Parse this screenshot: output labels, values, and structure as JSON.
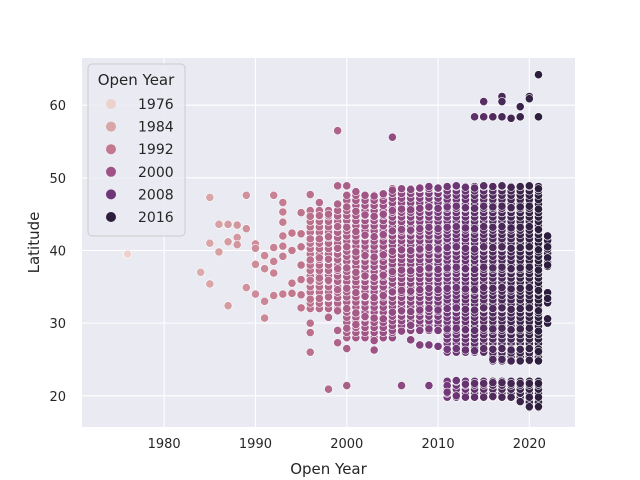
{
  "chart_data": {
    "type": "scatter",
    "xlabel": "Open Year",
    "ylabel": "Latitude",
    "xlim": [
      1971,
      2025
    ],
    "ylim": [
      15.7,
      66.5
    ],
    "xticks": [
      1980,
      1990,
      2000,
      2010,
      2020
    ],
    "yticks": [
      20,
      30,
      40,
      50,
      60
    ],
    "grid": true,
    "background": "#EAEAF2",
    "grid_color": "#FFFFFF",
    "legend": {
      "title": "Open Year",
      "position": "top-left",
      "entries": [
        {
          "label": "1976",
          "color": "#EDD1CB"
        },
        {
          "label": "1984",
          "color": "#D9A5A6"
        },
        {
          "label": "1992",
          "color": "#C3788E"
        },
        {
          "label": "2000",
          "color": "#9E5286"
        },
        {
          "label": "2008",
          "color": "#6D3676"
        },
        {
          "label": "2016",
          "color": "#2D1E3E"
        }
      ]
    },
    "color_scale": {
      "min_year": 1976,
      "max_year": 2021,
      "colors": [
        "#EDD1CB",
        "#D9A5A6",
        "#C3788E",
        "#9E5286",
        "#6D3676",
        "#2D1E3E"
      ]
    },
    "points": [
      [
        1976,
        39.5
      ],
      [
        1984,
        37.0
      ],
      [
        1985,
        47.3
      ],
      [
        1985,
        41.0
      ],
      [
        1985,
        35.4
      ],
      [
        1986,
        43.6
      ],
      [
        1986,
        39.8
      ],
      [
        1987,
        43.6
      ],
      [
        1987,
        41.2
      ],
      [
        1987,
        32.4
      ],
      [
        1988,
        43.5
      ],
      [
        1988,
        41.8
      ],
      [
        1988,
        40.8
      ],
      [
        1989,
        47.6
      ],
      [
        1989,
        43.0
      ],
      [
        1989,
        34.9
      ],
      [
        1990,
        40.9
      ],
      [
        1990,
        40.3
      ],
      [
        1990,
        38.1
      ],
      [
        1990,
        34.0
      ],
      [
        1991,
        39.3
      ],
      [
        1991,
        37.5
      ],
      [
        1991,
        33.0
      ],
      [
        1991,
        30.7
      ],
      [
        1992,
        47.6
      ],
      [
        1992,
        40.4
      ],
      [
        1992,
        38.5
      ],
      [
        1992,
        36.9
      ],
      [
        1992,
        33.8
      ],
      [
        1993,
        46.6
      ],
      [
        1993,
        45.3
      ],
      [
        1993,
        43.9
      ],
      [
        1993,
        42.0
      ],
      [
        1993,
        40.6
      ],
      [
        1993,
        39.2
      ],
      [
        1993,
        34.0
      ],
      [
        1994,
        42.4
      ],
      [
        1994,
        40.0
      ],
      [
        1994,
        35.5
      ],
      [
        1994,
        34.1
      ],
      [
        1995,
        45.2
      ],
      [
        1995,
        42.3
      ],
      [
        1995,
        40.5
      ],
      [
        1995,
        38.0
      ],
      [
        1995,
        36.0
      ],
      [
        1995,
        33.9
      ],
      [
        1995,
        32.1
      ],
      [
        1996,
        47.7
      ],
      [
        1996,
        44.7
      ],
      [
        1996,
        41.6
      ],
      [
        1996,
        38.7
      ],
      [
        1996,
        35.9
      ],
      [
        1996,
        33.3
      ],
      [
        1996,
        30.0
      ],
      [
        1996,
        26.0
      ],
      [
        1996,
        28.7
      ],
      [
        1997,
        46.6
      ],
      [
        1997,
        44.8
      ],
      [
        1997,
        41.6
      ],
      [
        1997,
        39.0
      ],
      [
        1997,
        36.2
      ],
      [
        1997,
        33.4
      ],
      [
        1998,
        45.0
      ],
      [
        1998,
        41.9
      ],
      [
        1998,
        38.8
      ],
      [
        1998,
        35.9
      ],
      [
        1998,
        33.6
      ],
      [
        1998,
        30.8
      ],
      [
        1998,
        20.9
      ],
      [
        1999,
        56.5
      ],
      [
        1999,
        48.9
      ],
      [
        1999,
        46.4
      ],
      [
        1999,
        43.3
      ],
      [
        1999,
        40.3
      ],
      [
        1999,
        37.5
      ],
      [
        1999,
        34.6
      ],
      [
        1999,
        31.7
      ],
      [
        1999,
        29.0
      ],
      [
        1999,
        27.3
      ],
      [
        2000,
        48.9
      ],
      [
        2000,
        46.0
      ],
      [
        2000,
        43.2
      ],
      [
        2000,
        40.5
      ],
      [
        2000,
        37.6
      ],
      [
        2000,
        34.8
      ],
      [
        2000,
        32.0
      ],
      [
        2000,
        29.3
      ],
      [
        2000,
        26.5
      ],
      [
        2000,
        21.4
      ],
      [
        2001,
        48.1
      ],
      [
        2001,
        45.4
      ],
      [
        2001,
        42.6
      ],
      [
        2001,
        39.8
      ],
      [
        2001,
        37.0
      ],
      [
        2001,
        34.2
      ],
      [
        2001,
        31.4
      ],
      [
        2001,
        29.8
      ],
      [
        2002,
        47.6
      ],
      [
        2002,
        44.9
      ],
      [
        2002,
        42.1
      ],
      [
        2002,
        39.3
      ],
      [
        2002,
        36.5
      ],
      [
        2002,
        33.7
      ],
      [
        2002,
        30.9
      ],
      [
        2003,
        47.5
      ],
      [
        2003,
        44.7
      ],
      [
        2003,
        41.9
      ],
      [
        2003,
        39.1
      ],
      [
        2003,
        36.3
      ],
      [
        2003,
        33.5
      ],
      [
        2003,
        30.7
      ],
      [
        2003,
        27.6
      ],
      [
        2003,
        26.3
      ],
      [
        2004,
        47.8
      ],
      [
        2004,
        45.0
      ],
      [
        2004,
        42.2
      ],
      [
        2004,
        39.4
      ],
      [
        2004,
        36.6
      ],
      [
        2004,
        33.8
      ],
      [
        2004,
        30.6
      ],
      [
        2005,
        55.6
      ],
      [
        2005,
        48.3
      ],
      [
        2005,
        45.5
      ],
      [
        2005,
        42.7
      ],
      [
        2005,
        39.9
      ],
      [
        2005,
        37.1
      ],
      [
        2005,
        34.3
      ],
      [
        2005,
        31.5
      ],
      [
        2006,
        48.5
      ],
      [
        2006,
        45.7
      ],
      [
        2006,
        42.9
      ],
      [
        2006,
        40.1
      ],
      [
        2006,
        37.3
      ],
      [
        2006,
        34.5
      ],
      [
        2006,
        31.7
      ],
      [
        2006,
        28.9
      ],
      [
        2006,
        21.4
      ],
      [
        2007,
        48.4
      ],
      [
        2007,
        45.6
      ],
      [
        2007,
        42.8
      ],
      [
        2007,
        40.0
      ],
      [
        2007,
        37.2
      ],
      [
        2007,
        34.4
      ],
      [
        2007,
        31.6
      ],
      [
        2007,
        29.7
      ],
      [
        2007,
        27.7
      ],
      [
        2008,
        48.6
      ],
      [
        2008,
        45.8
      ],
      [
        2008,
        43.0
      ],
      [
        2008,
        40.2
      ],
      [
        2008,
        37.4
      ],
      [
        2008,
        34.6
      ],
      [
        2008,
        31.8
      ],
      [
        2008,
        29.0
      ],
      [
        2008,
        27.0
      ],
      [
        2009,
        48.8
      ],
      [
        2009,
        46.0
      ],
      [
        2009,
        43.2
      ],
      [
        2009,
        40.4
      ],
      [
        2009,
        37.6
      ],
      [
        2009,
        34.8
      ],
      [
        2009,
        32.0
      ],
      [
        2009,
        29.2
      ],
      [
        2009,
        27.0
      ],
      [
        2009,
        21.4
      ],
      [
        2010,
        48.6
      ],
      [
        2010,
        45.8
      ],
      [
        2010,
        43.0
      ],
      [
        2010,
        40.2
      ],
      [
        2010,
        37.4
      ],
      [
        2010,
        34.6
      ],
      [
        2010,
        31.8
      ],
      [
        2010,
        29.0
      ],
      [
        2010,
        26.8
      ],
      [
        2011,
        48.8
      ],
      [
        2011,
        46.0
      ],
      [
        2011,
        43.2
      ],
      [
        2011,
        40.4
      ],
      [
        2011,
        37.6
      ],
      [
        2011,
        34.8
      ],
      [
        2011,
        32.0
      ],
      [
        2011,
        29.2
      ],
      [
        2011,
        26.4
      ],
      [
        2011,
        21.4
      ],
      [
        2011,
        20.5
      ],
      [
        2012,
        48.9
      ],
      [
        2012,
        46.1
      ],
      [
        2012,
        43.3
      ],
      [
        2012,
        40.5
      ],
      [
        2012,
        37.7
      ],
      [
        2012,
        34.9
      ],
      [
        2012,
        32.1
      ],
      [
        2012,
        29.3
      ],
      [
        2012,
        26.5
      ],
      [
        2012,
        22.1
      ],
      [
        2012,
        20.0
      ],
      [
        2013,
        48.7
      ],
      [
        2013,
        45.9
      ],
      [
        2013,
        43.1
      ],
      [
        2013,
        40.3
      ],
      [
        2013,
        37.5
      ],
      [
        2013,
        34.7
      ],
      [
        2013,
        31.9
      ],
      [
        2013,
        29.1
      ],
      [
        2013,
        26.3
      ],
      [
        2013,
        21.6
      ],
      [
        2013,
        19.8
      ],
      [
        2014,
        58.4
      ],
      [
        2014,
        48.6
      ],
      [
        2014,
        45.8
      ],
      [
        2014,
        43.0
      ],
      [
        2014,
        40.2
      ],
      [
        2014,
        37.4
      ],
      [
        2014,
        34.6
      ],
      [
        2014,
        31.8
      ],
      [
        2014,
        29.0
      ],
      [
        2014,
        26.2
      ],
      [
        2014,
        21.7
      ],
      [
        2014,
        19.8
      ],
      [
        2015,
        60.5
      ],
      [
        2015,
        58.4
      ],
      [
        2015,
        48.9
      ],
      [
        2015,
        46.1
      ],
      [
        2015,
        43.3
      ],
      [
        2015,
        40.5
      ],
      [
        2015,
        37.7
      ],
      [
        2015,
        34.9
      ],
      [
        2015,
        32.1
      ],
      [
        2015,
        29.3
      ],
      [
        2015,
        26.5
      ],
      [
        2015,
        21.7
      ],
      [
        2015,
        19.8
      ],
      [
        2016,
        58.4
      ],
      [
        2016,
        48.8
      ],
      [
        2016,
        46.0
      ],
      [
        2016,
        43.2
      ],
      [
        2016,
        40.4
      ],
      [
        2016,
        37.6
      ],
      [
        2016,
        34.8
      ],
      [
        2016,
        32.0
      ],
      [
        2016,
        29.2
      ],
      [
        2016,
        26.4
      ],
      [
        2016,
        25.0
      ],
      [
        2016,
        21.8
      ],
      [
        2016,
        19.9
      ],
      [
        2017,
        61.2
      ],
      [
        2017,
        60.5
      ],
      [
        2017,
        58.4
      ],
      [
        2017,
        48.9
      ],
      [
        2017,
        46.1
      ],
      [
        2017,
        43.3
      ],
      [
        2017,
        40.5
      ],
      [
        2017,
        37.7
      ],
      [
        2017,
        34.9
      ],
      [
        2017,
        32.1
      ],
      [
        2017,
        29.3
      ],
      [
        2017,
        26.5
      ],
      [
        2017,
        25.0
      ],
      [
        2017,
        21.8
      ],
      [
        2017,
        19.8
      ],
      [
        2018,
        58.2
      ],
      [
        2018,
        48.7
      ],
      [
        2018,
        45.9
      ],
      [
        2018,
        43.1
      ],
      [
        2018,
        40.3
      ],
      [
        2018,
        37.5
      ],
      [
        2018,
        34.7
      ],
      [
        2018,
        31.9
      ],
      [
        2018,
        29.1
      ],
      [
        2018,
        26.3
      ],
      [
        2018,
        24.8
      ],
      [
        2018,
        21.7
      ],
      [
        2018,
        19.8
      ],
      [
        2019,
        59.8
      ],
      [
        2019,
        58.4
      ],
      [
        2019,
        48.8
      ],
      [
        2019,
        46.0
      ],
      [
        2019,
        43.2
      ],
      [
        2019,
        40.4
      ],
      [
        2019,
        37.6
      ],
      [
        2019,
        34.8
      ],
      [
        2019,
        32.0
      ],
      [
        2019,
        29.2
      ],
      [
        2019,
        26.4
      ],
      [
        2019,
        24.8
      ],
      [
        2019,
        21.7
      ],
      [
        2019,
        19.2
      ],
      [
        2020,
        61.2
      ],
      [
        2020,
        60.9
      ],
      [
        2020,
        48.9
      ],
      [
        2020,
        46.1
      ],
      [
        2020,
        43.3
      ],
      [
        2020,
        40.5
      ],
      [
        2020,
        37.7
      ],
      [
        2020,
        34.9
      ],
      [
        2020,
        32.1
      ],
      [
        2020,
        29.3
      ],
      [
        2020,
        26.5
      ],
      [
        2020,
        24.9
      ],
      [
        2020,
        21.7
      ],
      [
        2020,
        18.5
      ],
      [
        2021,
        64.2
      ],
      [
        2021,
        58.4
      ],
      [
        2021,
        48.5
      ],
      [
        2021,
        45.7
      ],
      [
        2021,
        42.9
      ],
      [
        2021,
        40.1
      ],
      [
        2021,
        37.3
      ],
      [
        2021,
        34.5
      ],
      [
        2021,
        31.7
      ],
      [
        2021,
        28.9
      ],
      [
        2021,
        26.1
      ],
      [
        2021,
        24.8
      ],
      [
        2021,
        21.7
      ],
      [
        2021,
        18.5
      ],
      [
        2022,
        42.0
      ],
      [
        2022,
        40.5
      ],
      [
        2022,
        39.0
      ],
      [
        2022,
        38.0
      ],
      [
        2022,
        34.2
      ],
      [
        2022,
        33.4
      ],
      [
        2022,
        30.6
      ]
    ],
    "density_regions": [
      {
        "x": [
          1996,
          2000
        ],
        "y": [
          32,
          46
        ],
        "step_x": 0.5,
        "step_y": 0.75
      },
      {
        "x": [
          2000,
          2005
        ],
        "y": [
          28,
          48
        ],
        "step_x": 0.5,
        "step_y": 0.7
      },
      {
        "x": [
          2005,
          2011
        ],
        "y": [
          29,
          48.5
        ],
        "step_x": 0.4,
        "step_y": 0.65
      },
      {
        "x": [
          2011,
          2021
        ],
        "y": [
          26,
          48.8
        ],
        "step_x": 0.4,
        "step_y": 0.6
      },
      {
        "x": [
          2016,
          2021
        ],
        "y": [
          24.8,
          26.5
        ],
        "step_x": 0.45,
        "step_y": 0.55
      },
      {
        "x": [
          2011,
          2021
        ],
        "y": [
          19.8,
          22.2
        ],
        "step_x": 0.4,
        "step_y": 0.55
      },
      {
        "x": [
          2019.5,
          2021.2
        ],
        "y": [
          18.4,
          20
        ],
        "step_x": 0.6,
        "step_y": 0.7
      },
      {
        "x": [
          2021.8,
          2022.2
        ],
        "y": [
          37.8,
          42.2
        ],
        "step_x": 0.4,
        "step_y": 0.6
      },
      {
        "x": [
          2021.8,
          2022.2
        ],
        "y": [
          32.8,
          34.4
        ],
        "step_x": 0.4,
        "step_y": 0.6
      },
      {
        "x": [
          2021.8,
          2022.2
        ],
        "y": [
          30.0,
          30.8
        ],
        "step_x": 0.4,
        "step_y": 0.6
      }
    ]
  }
}
